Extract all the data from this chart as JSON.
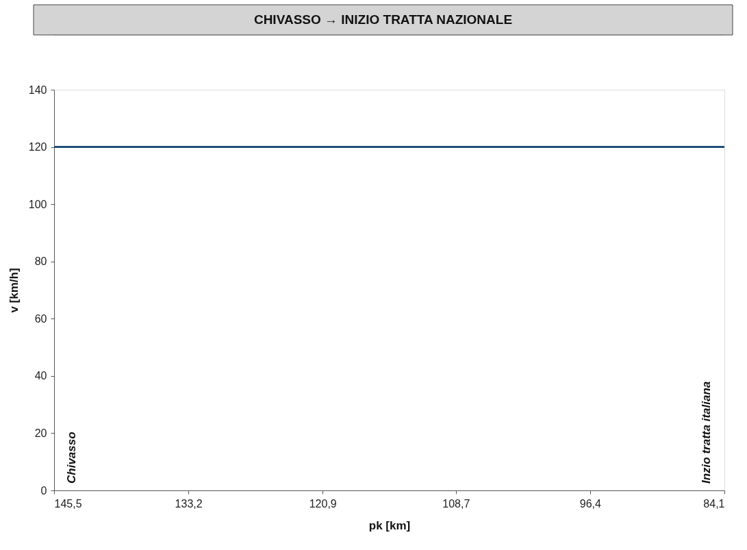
{
  "chart_data": {
    "type": "line",
    "title": "CHIVASSO → INIZIO TRATTA NAZIONALE",
    "xlabel": "pk [km]",
    "ylabel": "v [km/h]",
    "x": [
      145.5,
      84.1
    ],
    "series": [
      {
        "color": "#1f4e79",
        "values": [
          120,
          120
        ]
      }
    ],
    "xlim": [
      145.5,
      84.1
    ],
    "xticks": [
      {
        "value": 145.5,
        "label": "145,5"
      },
      {
        "value": 133.2,
        "label": "133,2"
      },
      {
        "value": 120.9,
        "label": "120,9"
      },
      {
        "value": 108.7,
        "label": "108,7"
      },
      {
        "value": 96.4,
        "label": "96,4"
      },
      {
        "value": 84.1,
        "label": "84,1"
      }
    ],
    "ylim": [
      0,
      140
    ],
    "yticks": [
      0,
      20,
      40,
      60,
      80,
      100,
      120,
      140
    ],
    "grid": false,
    "marker": "none",
    "line_style": "solid",
    "annotations": [
      "Chivasso",
      "Inzio tratta italiana"
    ]
  }
}
